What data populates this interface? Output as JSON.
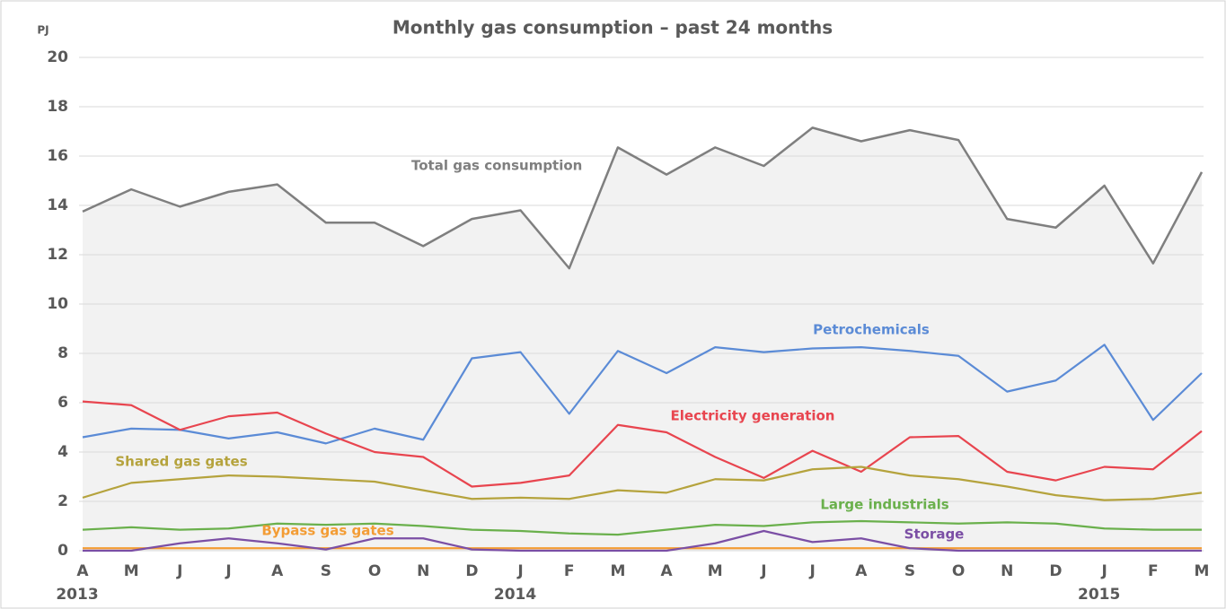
{
  "chart_data": {
    "type": "line",
    "title": "Monthly gas consumption – past 24 months",
    "y_label": "PJ",
    "categories": [
      "A",
      "M",
      "J",
      "J",
      "A",
      "S",
      "O",
      "N",
      "D",
      "J",
      "F",
      "M",
      "A",
      "M",
      "J",
      "J",
      "A",
      "S",
      "O",
      "N",
      "D",
      "J",
      "F",
      "M"
    ],
    "x_year_labels": [
      "2013",
      null,
      null,
      null,
      null,
      null,
      null,
      null,
      null,
      "2014",
      null,
      null,
      null,
      null,
      null,
      null,
      null,
      null,
      null,
      null,
      null,
      "2015",
      null,
      null
    ],
    "ylim": [
      0,
      20
    ],
    "yticks": [
      0,
      2,
      4,
      6,
      8,
      10,
      12,
      14,
      16,
      18,
      20
    ],
    "grid": true,
    "area_fill": "#f2f2f2",
    "series": [
      {
        "name": "Total gas consumption",
        "color": "#7f7f7f",
        "area": true,
        "values": [
          13.75,
          14.65,
          13.95,
          14.55,
          14.85,
          13.3,
          13.3,
          12.35,
          13.45,
          13.8,
          11.45,
          16.35,
          15.25,
          16.35,
          15.6,
          17.15,
          16.6,
          17.05,
          16.65,
          13.45,
          13.1,
          14.8,
          11.65,
          15.35
        ]
      },
      {
        "name": "Petrochemicals",
        "color": "#5b8bd6",
        "values": [
          4.6,
          4.95,
          4.9,
          4.55,
          4.8,
          4.35,
          4.95,
          4.5,
          7.8,
          8.05,
          5.55,
          8.1,
          7.2,
          8.25,
          8.05,
          8.2,
          8.25,
          8.1,
          7.9,
          6.45,
          6.9,
          8.35,
          5.3,
          7.2
        ]
      },
      {
        "name": "Electricity generation",
        "color": "#e8454f",
        "values": [
          6.05,
          5.9,
          4.9,
          5.45,
          5.6,
          4.75,
          4.0,
          3.8,
          2.6,
          2.75,
          3.05,
          5.1,
          4.8,
          3.8,
          2.95,
          4.05,
          3.2,
          4.6,
          4.65,
          3.2,
          2.85,
          3.4,
          3.3,
          4.85
        ]
      },
      {
        "name": "Shared gas gates",
        "color": "#b5a33d",
        "values": [
          2.15,
          2.75,
          2.9,
          3.05,
          3.0,
          2.9,
          2.8,
          2.45,
          2.1,
          2.15,
          2.1,
          2.45,
          2.35,
          2.9,
          2.85,
          3.3,
          3.4,
          3.05,
          2.9,
          2.6,
          2.25,
          2.05,
          2.1,
          2.35
        ]
      },
      {
        "name": "Large industrials",
        "color": "#6ab04c",
        "values": [
          0.85,
          0.95,
          0.85,
          0.9,
          1.1,
          1.05,
          1.1,
          1.0,
          0.85,
          0.8,
          0.7,
          0.65,
          0.85,
          1.05,
          1.0,
          1.15,
          1.2,
          1.15,
          1.1,
          1.15,
          1.1,
          0.9,
          0.85,
          0.85
        ]
      },
      {
        "name": "Bypass gas gates",
        "color": "#f39c34",
        "values": [
          0.1,
          0.1,
          0.1,
          0.1,
          0.1,
          0.1,
          0.1,
          0.1,
          0.1,
          0.1,
          0.1,
          0.1,
          0.1,
          0.1,
          0.1,
          0.1,
          0.1,
          0.1,
          0.1,
          0.1,
          0.1,
          0.1,
          0.1,
          0.1
        ]
      },
      {
        "name": "Storage",
        "color": "#7b4fa5",
        "values": [
          0,
          0,
          0.3,
          0.5,
          0.3,
          0.05,
          0.5,
          0.5,
          0.05,
          0,
          0,
          0,
          0,
          0.3,
          0.8,
          0.35,
          0.5,
          0.1,
          0,
          0,
          0,
          0,
          0,
          0
        ]
      }
    ]
  }
}
